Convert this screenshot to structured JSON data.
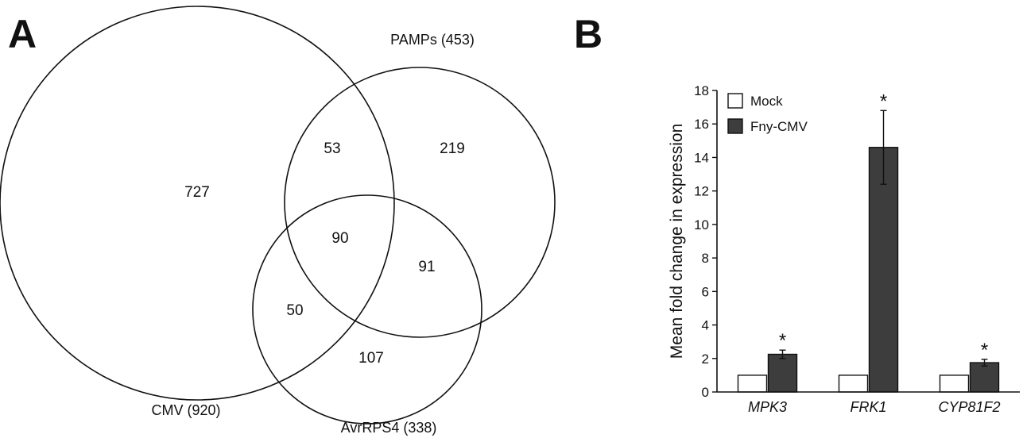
{
  "panels": {
    "a_label": "A",
    "b_label": "B"
  },
  "venn": {
    "sets": [
      {
        "id": "cmv",
        "label": "CMV (920)"
      },
      {
        "id": "pamps",
        "label": "PAMPs (453)"
      },
      {
        "id": "avr",
        "label": "AvrRPS4 (338)"
      }
    ],
    "regions": {
      "cmv_only": "727",
      "cmv_pamps": "53",
      "pamps_only": "219",
      "all_three": "90",
      "pamps_avr": "91",
      "cmv_avr": "50",
      "avr_only": "107"
    }
  },
  "chart_data": {
    "type": "bar",
    "ylabel": "Mean fold change in expression",
    "ylim": [
      0,
      18
    ],
    "yticks": [
      0,
      2,
      4,
      6,
      8,
      10,
      12,
      14,
      16,
      18
    ],
    "categories": [
      "MPK3",
      "FRK1",
      "CYP81F2"
    ],
    "series": [
      {
        "name": "Mock",
        "color": "#ffffff",
        "values": [
          1,
          1,
          1
        ],
        "errors": [
          0,
          0,
          0
        ]
      },
      {
        "name": "Fny-CMV",
        "color": "#3d3d3d",
        "values": [
          2.25,
          14.6,
          1.75
        ],
        "errors": [
          0.25,
          2.2,
          0.2
        ]
      }
    ],
    "significance": [
      "*",
      "*",
      "*"
    ],
    "legend_position": "top-left",
    "grid": false
  }
}
